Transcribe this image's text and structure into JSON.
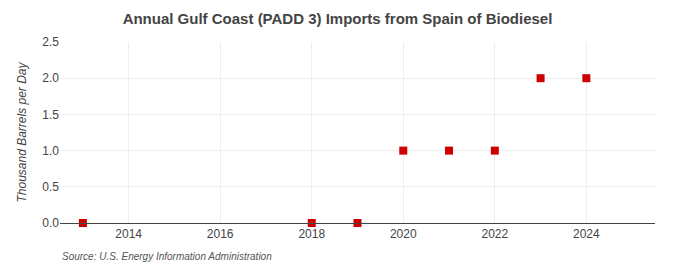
{
  "chart_data": {
    "type": "scatter",
    "title": "Annual Gulf Coast (PADD 3) Imports from Spain of Biodiesel",
    "ylabel": "Thousand Barrels per Day",
    "annotations": [
      "Source: U.S. Energy Information Administration"
    ],
    "x": [
      2013,
      2018,
      2019,
      2020,
      2021,
      2022,
      2023,
      2024
    ],
    "values": [
      0.0,
      0.0,
      0.0,
      1.0,
      1.0,
      1.0,
      2.0,
      2.0
    ],
    "color": "#cc0000",
    "marker": "square",
    "xlim": [
      2012.5,
      2025.5
    ],
    "xticks": [
      2014,
      2016,
      2018,
      2020,
      2022,
      2024
    ],
    "ylim": [
      0,
      2.5
    ],
    "yticks": [
      {
        "value": 0.0,
        "label": "0.0"
      },
      0.5,
      {
        "value": 1.0,
        "label": "1.0"
      },
      1.5,
      {
        "value": 2.0,
        "label": "2.0"
      },
      2.5
    ],
    "grid": true
  }
}
